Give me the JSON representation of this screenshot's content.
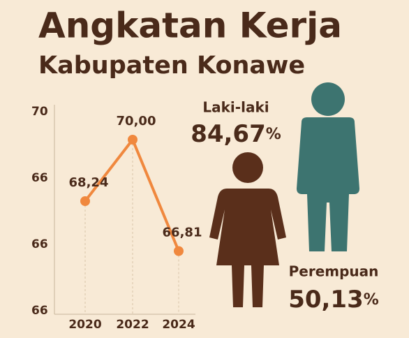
{
  "chart_data": {
    "type": "line",
    "title": "Angkatan Kerja",
    "subtitle": "Kabupaten Konawe",
    "categories": [
      "2020",
      "2022",
      "2024"
    ],
    "values": [
      68.24,
      70.0,
      66.81
    ],
    "value_labels": [
      "68,24",
      "70,00",
      "66,81"
    ],
    "color": "#f0883e",
    "ylim": [
      65,
      71
    ],
    "y_axis_labels": [
      "70",
      "66",
      "66",
      "66"
    ],
    "gender": [
      {
        "name": "Laki-laki",
        "value": 84.67,
        "value_label": "84,67",
        "unit": "%",
        "color": "#3d7470"
      },
      {
        "name": "Perempuan",
        "value": 50.13,
        "value_label": "50,13",
        "unit": "%",
        "color": "#5a2f1b"
      }
    ]
  }
}
